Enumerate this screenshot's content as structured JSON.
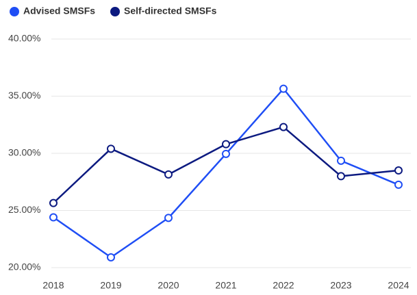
{
  "chart_data": {
    "type": "line",
    "categories": [
      "2018",
      "2019",
      "2020",
      "2021",
      "2022",
      "2023",
      "2024"
    ],
    "series": [
      {
        "name": "Advised SMSFs",
        "color": "#1f4ef5",
        "values": [
          24.4,
          20.9,
          24.35,
          29.95,
          35.65,
          29.35,
          27.25
        ]
      },
      {
        "name": "Self-directed SMSFs",
        "color": "#0c1a80",
        "values": [
          25.65,
          30.4,
          28.15,
          30.8,
          32.3,
          28.0,
          28.5
        ]
      }
    ],
    "ylim": [
      20,
      40
    ],
    "yticks": [
      {
        "value": 20,
        "label": "20.00%"
      },
      {
        "value": 25,
        "label": "25.00%"
      },
      {
        "value": 30,
        "label": "30.00%"
      },
      {
        "value": 35,
        "label": "35.00%"
      },
      {
        "value": 40,
        "label": "40.00%"
      }
    ],
    "grid": true,
    "legend": "top-left"
  }
}
